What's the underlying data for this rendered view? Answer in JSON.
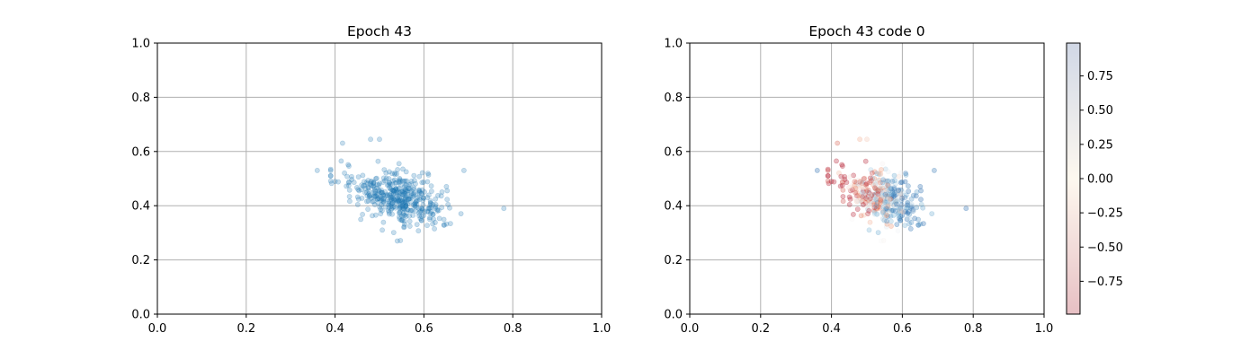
{
  "chart_data": [
    {
      "type": "scatter",
      "title": "Epoch 43",
      "xlim": [
        0,
        1
      ],
      "ylim": [
        0,
        1
      ],
      "xticks": [
        "0.0",
        "0.2",
        "0.4",
        "0.6",
        "0.8",
        "1.0"
      ],
      "yticks": [
        "0.0",
        "0.2",
        "0.4",
        "0.6",
        "0.8",
        "1.0"
      ],
      "grid": true,
      "point_color": "#1f77b4",
      "point_alpha": 0.25,
      "points_generation": {
        "n": 420,
        "center": [
          0.54,
          0.43
        ],
        "spread": [
          0.055,
          0.055
        ],
        "correlation": -0.5,
        "x_range": [
          0.36,
          0.78
        ],
        "y_range": [
          0.27,
          0.65
        ],
        "seed": 43
      },
      "notable_points": [
        [
          0.36,
          0.53
        ],
        [
          0.78,
          0.39
        ],
        [
          0.69,
          0.53
        ],
        [
          0.48,
          0.645
        ],
        [
          0.5,
          0.645
        ],
        [
          0.54,
          0.27
        ]
      ]
    },
    {
      "type": "scatter",
      "title": "Epoch 43 code 0",
      "xlim": [
        0,
        1
      ],
      "ylim": [
        0,
        1
      ],
      "xticks": [
        "0.0",
        "0.2",
        "0.4",
        "0.6",
        "0.8",
        "1.0"
      ],
      "yticks": [
        "0.0",
        "0.2",
        "0.4",
        "0.6",
        "0.8",
        "1.0"
      ],
      "grid": true,
      "colormap": "RdBu",
      "point_alpha": 0.3,
      "same_points_as_chart": 0,
      "color_value_range": [
        -1,
        1
      ],
      "colorbar": {
        "range": [
          -0.99,
          0.99
        ],
        "ticks": [
          "−0.75",
          "−0.50",
          "−0.25",
          "0.00",
          "0.25",
          "0.50",
          "0.75"
        ],
        "tick_values": [
          -0.75,
          -0.5,
          -0.25,
          0.0,
          0.25,
          0.5,
          0.75
        ],
        "low_color": "#e7c0c4",
        "mid_color": "#fdf8ef",
        "high_color": "#d1d8e6"
      }
    }
  ]
}
